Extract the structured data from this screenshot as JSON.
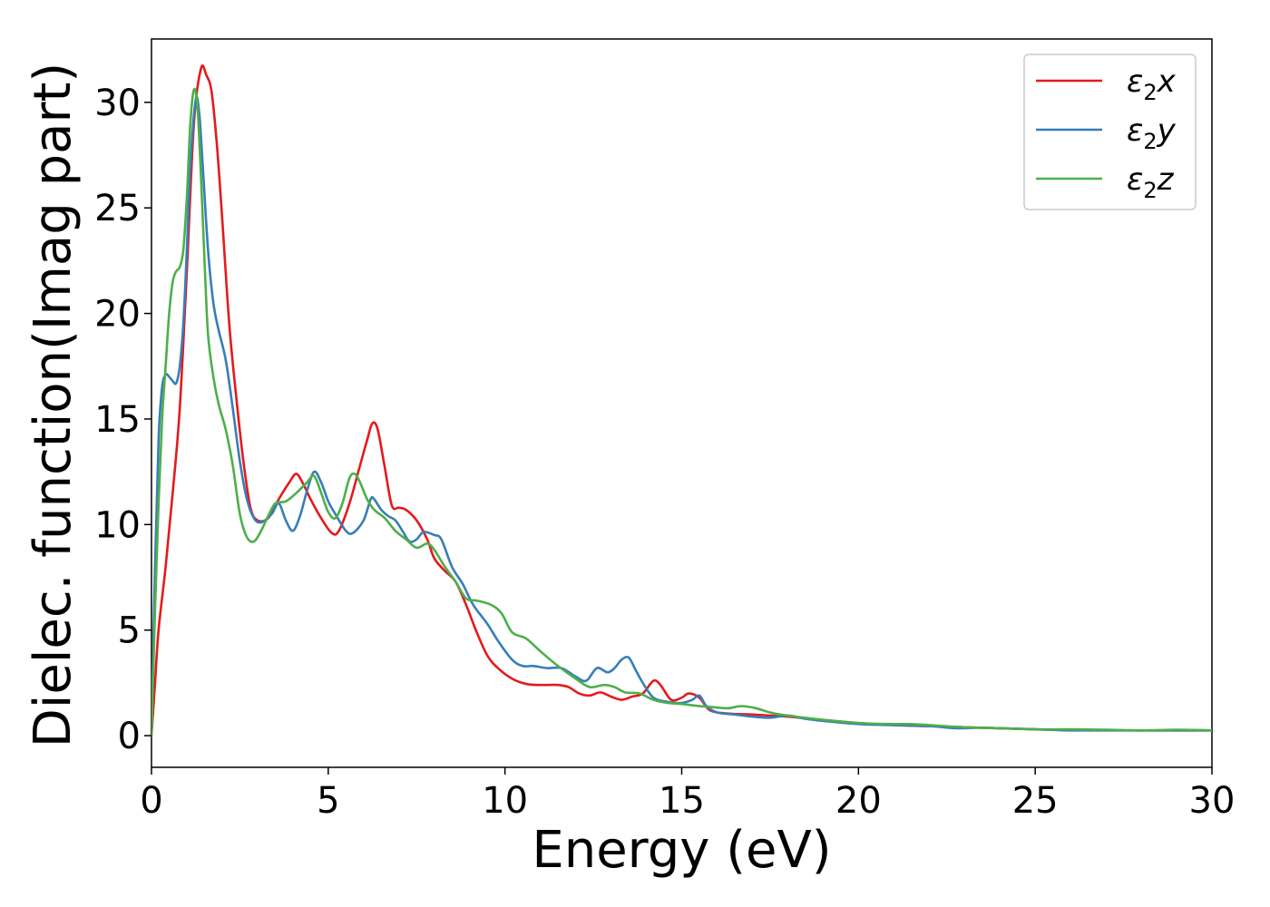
{
  "chart_data": {
    "type": "line",
    "title": "",
    "xlabel": "Energy (eV)",
    "ylabel": "Dielec. function(Imag part)",
    "xlim": [
      0,
      30
    ],
    "ylim": [
      -1.5,
      33
    ],
    "xticks": [
      0,
      5,
      10,
      15,
      20,
      25,
      30
    ],
    "xtick_labels": [
      "0",
      "5",
      "10",
      "15",
      "20",
      "25",
      "30"
    ],
    "yticks": [
      0,
      5,
      10,
      15,
      20,
      25,
      30
    ],
    "ytick_labels": [
      "0",
      "5",
      "10",
      "15",
      "20",
      "25",
      "30"
    ],
    "grid": false,
    "legend_position": "top-right",
    "series": [
      {
        "name": "x",
        "color": "#e41a1c",
        "points": [
          [
            0,
            0
          ],
          [
            0.1,
            2.5
          ],
          [
            0.2,
            5
          ],
          [
            0.4,
            8
          ],
          [
            0.6,
            11.5
          ],
          [
            0.8,
            15.5
          ],
          [
            1.0,
            22
          ],
          [
            1.2,
            29
          ],
          [
            1.4,
            31.6
          ],
          [
            1.55,
            31.3
          ],
          [
            1.7,
            30.5
          ],
          [
            1.85,
            28
          ],
          [
            2.0,
            24.5
          ],
          [
            2.2,
            19.5
          ],
          [
            2.4,
            16
          ],
          [
            2.6,
            13
          ],
          [
            2.8,
            10.8
          ],
          [
            3.0,
            10.2
          ],
          [
            3.3,
            10.3
          ],
          [
            3.6,
            11.2
          ],
          [
            3.9,
            12
          ],
          [
            4.1,
            12.4
          ],
          [
            4.3,
            11.9
          ],
          [
            4.5,
            11.2
          ],
          [
            4.8,
            10.3
          ],
          [
            5.1,
            9.6
          ],
          [
            5.3,
            9.7
          ],
          [
            5.6,
            11
          ],
          [
            5.9,
            12.8
          ],
          [
            6.1,
            14
          ],
          [
            6.25,
            14.8
          ],
          [
            6.4,
            14.5
          ],
          [
            6.6,
            12.7
          ],
          [
            6.8,
            10.9
          ],
          [
            7.0,
            10.8
          ],
          [
            7.2,
            10.7
          ],
          [
            7.5,
            10.2
          ],
          [
            7.8,
            9.3
          ],
          [
            8.0,
            8.4
          ],
          [
            8.3,
            7.8
          ],
          [
            8.6,
            7.3
          ],
          [
            8.9,
            6.2
          ],
          [
            9.2,
            4.9
          ],
          [
            9.5,
            3.8
          ],
          [
            9.8,
            3.2
          ],
          [
            10.2,
            2.7
          ],
          [
            10.6,
            2.45
          ],
          [
            11.0,
            2.4
          ],
          [
            11.5,
            2.4
          ],
          [
            11.8,
            2.3
          ],
          [
            12.1,
            2.0
          ],
          [
            12.4,
            1.9
          ],
          [
            12.7,
            2.05
          ],
          [
            13.0,
            1.85
          ],
          [
            13.3,
            1.7
          ],
          [
            13.6,
            1.85
          ],
          [
            13.9,
            2.0
          ],
          [
            14.2,
            2.6
          ],
          [
            14.4,
            2.4
          ],
          [
            14.7,
            1.7
          ],
          [
            15.0,
            1.8
          ],
          [
            15.2,
            2.0
          ],
          [
            15.5,
            1.8
          ],
          [
            15.8,
            1.2
          ],
          [
            16.3,
            1.05
          ],
          [
            17.0,
            1.0
          ],
          [
            17.5,
            0.95
          ],
          [
            18.0,
            0.9
          ],
          [
            19.0,
            0.75
          ],
          [
            20.0,
            0.6
          ],
          [
            21.0,
            0.5
          ],
          [
            22.0,
            0.45
          ],
          [
            23.0,
            0.4
          ],
          [
            24.0,
            0.35
          ],
          [
            25.0,
            0.3
          ],
          [
            26.0,
            0.28
          ],
          [
            27.0,
            0.26
          ],
          [
            28.0,
            0.25
          ],
          [
            29.0,
            0.25
          ],
          [
            30.0,
            0.25
          ]
        ]
      },
      {
        "name": "y",
        "color": "#377eb8",
        "points": [
          [
            0,
            0
          ],
          [
            0.1,
            8
          ],
          [
            0.2,
            14
          ],
          [
            0.3,
            16.5
          ],
          [
            0.4,
            17.1
          ],
          [
            0.5,
            17
          ],
          [
            0.6,
            16.8
          ],
          [
            0.7,
            16.7
          ],
          [
            0.8,
            17.5
          ],
          [
            0.9,
            19.5
          ],
          [
            1.0,
            23
          ],
          [
            1.1,
            27
          ],
          [
            1.25,
            30.1
          ],
          [
            1.35,
            29.5
          ],
          [
            1.45,
            27
          ],
          [
            1.6,
            23
          ],
          [
            1.75,
            20.5
          ],
          [
            1.9,
            19.2
          ],
          [
            2.1,
            17.8
          ],
          [
            2.3,
            15.5
          ],
          [
            2.5,
            13
          ],
          [
            2.7,
            11.2
          ],
          [
            2.9,
            10.3
          ],
          [
            3.1,
            10.1
          ],
          [
            3.4,
            10.5
          ],
          [
            3.6,
            11
          ],
          [
            3.8,
            10.2
          ],
          [
            4.0,
            9.7
          ],
          [
            4.2,
            10.4
          ],
          [
            4.4,
            11.6
          ],
          [
            4.6,
            12.5
          ],
          [
            4.8,
            12
          ],
          [
            5.0,
            11.1
          ],
          [
            5.2,
            10.5
          ],
          [
            5.5,
            9.7
          ],
          [
            5.7,
            9.6
          ],
          [
            6.0,
            10.2
          ],
          [
            6.2,
            11.2
          ],
          [
            6.3,
            11.2
          ],
          [
            6.5,
            10.7
          ],
          [
            6.7,
            10.4
          ],
          [
            6.9,
            10.2
          ],
          [
            7.1,
            9.7
          ],
          [
            7.3,
            9.2
          ],
          [
            7.5,
            9.3
          ],
          [
            7.7,
            9.65
          ],
          [
            8.0,
            9.5
          ],
          [
            8.2,
            9.3
          ],
          [
            8.5,
            8
          ],
          [
            8.8,
            7.2
          ],
          [
            9.1,
            6.2
          ],
          [
            9.5,
            5.3
          ],
          [
            9.8,
            4.5
          ],
          [
            10.2,
            3.6
          ],
          [
            10.5,
            3.3
          ],
          [
            10.8,
            3.3
          ],
          [
            11.2,
            3.2
          ],
          [
            11.6,
            3.2
          ],
          [
            12.0,
            2.8
          ],
          [
            12.3,
            2.6
          ],
          [
            12.6,
            3.2
          ],
          [
            12.9,
            3.0
          ],
          [
            13.1,
            3.2
          ],
          [
            13.3,
            3.6
          ],
          [
            13.5,
            3.7
          ],
          [
            13.7,
            3.1
          ],
          [
            13.9,
            2.5
          ],
          [
            14.2,
            1.8
          ],
          [
            14.6,
            1.6
          ],
          [
            15.0,
            1.55
          ],
          [
            15.3,
            1.7
          ],
          [
            15.5,
            1.9
          ],
          [
            15.7,
            1.4
          ],
          [
            16.0,
            1.1
          ],
          [
            16.5,
            1.0
          ],
          [
            17.0,
            0.9
          ],
          [
            17.5,
            0.85
          ],
          [
            18.0,
            0.95
          ],
          [
            18.5,
            0.8
          ],
          [
            19.0,
            0.7
          ],
          [
            20.0,
            0.55
          ],
          [
            21.0,
            0.5
          ],
          [
            22.0,
            0.45
          ],
          [
            22.8,
            0.35
          ],
          [
            23.5,
            0.38
          ],
          [
            24.0,
            0.35
          ],
          [
            25.0,
            0.3
          ],
          [
            26.0,
            0.25
          ],
          [
            27.0,
            0.25
          ],
          [
            28.0,
            0.25
          ],
          [
            29.0,
            0.25
          ],
          [
            30.0,
            0.25
          ]
        ]
      },
      {
        "name": "z",
        "color": "#4daf4a",
        "points": [
          [
            0,
            0
          ],
          [
            0.1,
            6
          ],
          [
            0.2,
            11
          ],
          [
            0.3,
            15
          ],
          [
            0.4,
            17.5
          ],
          [
            0.5,
            20
          ],
          [
            0.6,
            21.5
          ],
          [
            0.7,
            22
          ],
          [
            0.8,
            22.2
          ],
          [
            0.9,
            23
          ],
          [
            1.0,
            25.5
          ],
          [
            1.1,
            29
          ],
          [
            1.2,
            30.6
          ],
          [
            1.3,
            29.8
          ],
          [
            1.4,
            26.5
          ],
          [
            1.5,
            22.5
          ],
          [
            1.6,
            19
          ],
          [
            1.75,
            17
          ],
          [
            1.9,
            15.7
          ],
          [
            2.1,
            14.5
          ],
          [
            2.3,
            12.8
          ],
          [
            2.5,
            10.5
          ],
          [
            2.7,
            9.4
          ],
          [
            2.9,
            9.2
          ],
          [
            3.1,
            9.7
          ],
          [
            3.3,
            10.4
          ],
          [
            3.5,
            11
          ],
          [
            3.8,
            11.1
          ],
          [
            4.1,
            11.5
          ],
          [
            4.4,
            12
          ],
          [
            4.6,
            12.3
          ],
          [
            4.8,
            11.5
          ],
          [
            5.0,
            10.6
          ],
          [
            5.2,
            10.3
          ],
          [
            5.4,
            11
          ],
          [
            5.6,
            12.2
          ],
          [
            5.75,
            12.4
          ],
          [
            5.9,
            12
          ],
          [
            6.1,
            11.2
          ],
          [
            6.3,
            10.7
          ],
          [
            6.6,
            10.3
          ],
          [
            6.9,
            9.7
          ],
          [
            7.2,
            9.3
          ],
          [
            7.5,
            8.9
          ],
          [
            7.8,
            9.1
          ],
          [
            8.0,
            8.8
          ],
          [
            8.3,
            8
          ],
          [
            8.6,
            7.3
          ],
          [
            8.9,
            6.5
          ],
          [
            9.2,
            6.4
          ],
          [
            9.6,
            6.2
          ],
          [
            9.9,
            5.8
          ],
          [
            10.2,
            4.9
          ],
          [
            10.6,
            4.6
          ],
          [
            11.0,
            4
          ],
          [
            11.5,
            3.3
          ],
          [
            12.0,
            2.7
          ],
          [
            12.4,
            2.3
          ],
          [
            12.8,
            2.4
          ],
          [
            13.1,
            2.3
          ],
          [
            13.4,
            2.05
          ],
          [
            13.8,
            2.0
          ],
          [
            14.2,
            1.7
          ],
          [
            14.6,
            1.55
          ],
          [
            15.0,
            1.5
          ],
          [
            15.5,
            1.4
          ],
          [
            15.9,
            1.35
          ],
          [
            16.3,
            1.3
          ],
          [
            16.7,
            1.4
          ],
          [
            17.1,
            1.3
          ],
          [
            17.5,
            1.1
          ],
          [
            18.0,
            0.95
          ],
          [
            19.0,
            0.75
          ],
          [
            20.0,
            0.6
          ],
          [
            21.0,
            0.55
          ],
          [
            21.5,
            0.55
          ],
          [
            22.0,
            0.5
          ],
          [
            23.0,
            0.4
          ],
          [
            24.0,
            0.35
          ],
          [
            25.0,
            0.3
          ],
          [
            26.0,
            0.3
          ],
          [
            27.0,
            0.28
          ],
          [
            28.0,
            0.25
          ],
          [
            29.0,
            0.28
          ],
          [
            30.0,
            0.25
          ]
        ]
      }
    ]
  }
}
